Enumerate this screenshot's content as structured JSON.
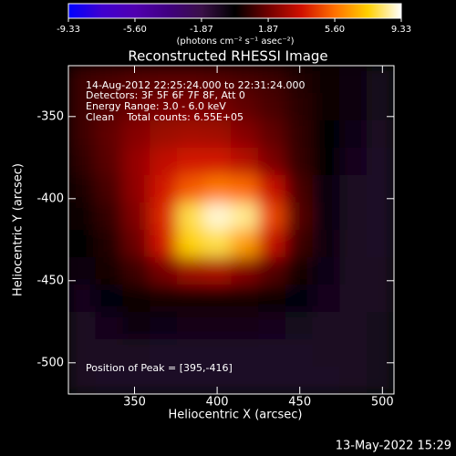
{
  "chart_data": {
    "type": "heatmap",
    "title": "Reconstructed RHESSI Image",
    "xlabel": "Heliocentric X (arcsec)",
    "ylabel": "Heliocentric Y (arcsec)",
    "annotations": [
      "14-Aug-2012 22:25:24.000 to 22:31:24.000",
      "Detectors: 3F 5F 6F 7F 8F, Att 0",
      "Energy Range: 3.0 - 6.0 keV",
      "Clean    Total counts: 6.55E+05"
    ],
    "peak_label": "Position of Peak = [395,-416]",
    "footer": "13-May-2022 15:29",
    "colorbar": {
      "label": "(photons cm⁻² s⁻¹ asec⁻²)",
      "clim": [
        -9.33,
        9.33
      ],
      "ticks": [
        -9.33,
        {
          "value": -5.6,
          "label": "-5.60"
        },
        -1.87,
        1.87,
        {
          "value": 5.6,
          "label": "5.60"
        },
        9.33
      ],
      "colormap": [
        "#0000ff",
        "#4000d0",
        "#5000b0",
        "#400080",
        "#3a1048",
        "#000000",
        "#700000",
        "#d01000",
        "#ff7000",
        "#ffd000",
        "#ffffff"
      ]
    },
    "xlim": [
      310,
      507
    ],
    "ylim": [
      -519,
      -319
    ],
    "xticks": [
      350,
      400,
      450,
      500
    ],
    "yticks": [
      -350,
      -400,
      -450,
      -500
    ],
    "x": [
      318.2,
      334.6,
      351,
      367.4,
      383.8,
      400.2,
      416.6,
      433,
      449.4,
      465.8,
      482.2,
      498.6
    ],
    "y": [
      -327.3,
      -344,
      -360.6,
      -377.3,
      -394,
      -410.6,
      -427.3,
      -444,
      -460.6,
      -477.3,
      -494,
      -510.6
    ],
    "z": [
      [
        1.0,
        1.2,
        1.4,
        1.5,
        1.5,
        1.4,
        1.2,
        1.0,
        0.6,
        0.2,
        -0.4,
        -0.8
      ],
      [
        1.0,
        1.4,
        1.8,
        2.0,
        2.1,
        2.0,
        1.6,
        1.2,
        0.7,
        0.2,
        -0.4,
        -0.8
      ],
      [
        1.0,
        1.6,
        2.3,
        2.7,
        2.9,
        2.8,
        2.3,
        1.6,
        0.8,
        0.1,
        -0.5,
        -0.9
      ],
      [
        0.8,
        1.5,
        2.6,
        3.4,
        3.8,
        3.8,
        3.2,
        2.1,
        0.9,
        0,
        -0.7,
        -1.0
      ],
      [
        0.5,
        1.2,
        2.5,
        3.8,
        5.2,
        5.8,
        5.5,
        3.6,
        1.2,
        -0.2,
        -0.9,
        -1.0
      ],
      [
        0.2,
        0.9,
        2.2,
        4.2,
        8.0,
        9.0,
        8.5,
        4.8,
        1.4,
        -0.2,
        -0.9,
        -1.0
      ],
      [
        0,
        0.6,
        1.8,
        3.8,
        7.5,
        8.0,
        6.5,
        3.5,
        1.0,
        -0.3,
        -0.9,
        -1.0
      ],
      [
        -0.4,
        0.3,
        1.0,
        2.0,
        2.8,
        3.0,
        2.3,
        1.4,
        0.4,
        -0.5,
        -0.9,
        -0.9
      ],
      [
        -0.7,
        -0.2,
        0.2,
        0.3,
        0.4,
        0.4,
        0.3,
        0.2,
        -0.2,
        -0.7,
        -0.9,
        -0.9
      ],
      [
        -0.9,
        -0.7,
        -0.4,
        -0.5,
        -0.6,
        -0.6,
        -0.6,
        -0.7,
        -0.8,
        -0.9,
        -0.9,
        -0.8
      ],
      [
        -0.9,
        -0.9,
        -0.9,
        -1.0,
        -1.0,
        -1.0,
        -1.0,
        -1.0,
        -1.0,
        -0.9,
        -0.9,
        -0.8
      ],
      [
        -0.9,
        -1.0,
        -1.0,
        -1.0,
        -1.0,
        -1.0,
        -1.0,
        -1.0,
        -1.0,
        -1.0,
        -0.9,
        -0.8
      ]
    ]
  }
}
